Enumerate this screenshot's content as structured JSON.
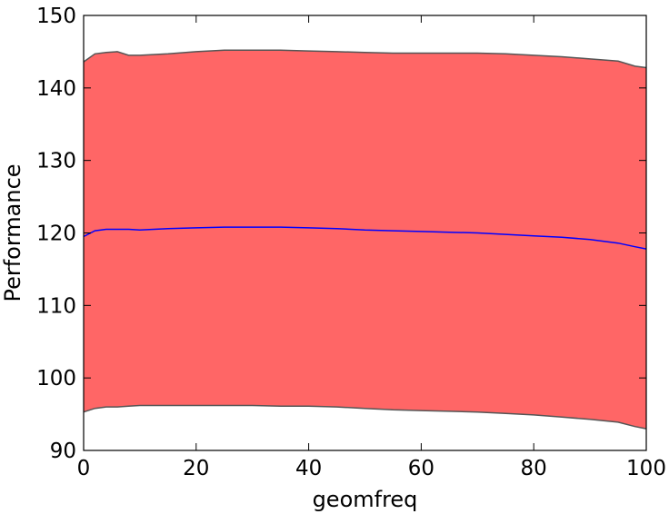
{
  "chart_data": {
    "type": "area",
    "title": "",
    "xlabel": "geomfreq",
    "ylabel": "Performance",
    "xlim": [
      0,
      100
    ],
    "ylim": [
      90,
      150
    ],
    "xticks": [
      0,
      20,
      40,
      60,
      80,
      100
    ],
    "yticks": [
      90,
      100,
      110,
      120,
      130,
      140,
      150
    ],
    "xtick_labels": [
      "0",
      "20",
      "40",
      "60",
      "80",
      "100"
    ],
    "ytick_labels": [
      "90",
      "100",
      "110",
      "120",
      "130",
      "140",
      "150"
    ],
    "grid": false,
    "legend": "none",
    "x": [
      0,
      2,
      4,
      6,
      8,
      10,
      15,
      20,
      25,
      30,
      35,
      40,
      45,
      50,
      55,
      60,
      65,
      70,
      75,
      80,
      85,
      90,
      95,
      98,
      100
    ],
    "series": [
      {
        "values": [
          119.5,
          120.3,
          120.5,
          120.5,
          120.5,
          120.4,
          120.6,
          120.7,
          120.8,
          120.8,
          120.8,
          120.7,
          120.6,
          120.4,
          120.3,
          120.2,
          120.1,
          120.0,
          119.8,
          119.6,
          119.4,
          119.1,
          118.6,
          118.1,
          117.8
        ],
        "color": "#0000ff"
      }
    ],
    "band": {
      "upper": [
        143.6,
        144.7,
        144.9,
        145.0,
        144.5,
        144.5,
        144.7,
        145.0,
        145.2,
        145.2,
        145.2,
        145.1,
        145.0,
        144.9,
        144.8,
        144.8,
        144.8,
        144.8,
        144.7,
        144.5,
        144.3,
        144.0,
        143.7,
        143.0,
        142.8
      ],
      "lower": [
        95.3,
        95.8,
        96.0,
        96.0,
        96.1,
        96.2,
        96.2,
        96.2,
        96.2,
        96.2,
        96.1,
        96.1,
        96.0,
        95.8,
        95.6,
        95.5,
        95.4,
        95.3,
        95.1,
        94.9,
        94.6,
        94.3,
        93.9,
        93.3,
        93.0
      ],
      "fill_color": "#ff6666",
      "edge_color": "#555555"
    }
  }
}
